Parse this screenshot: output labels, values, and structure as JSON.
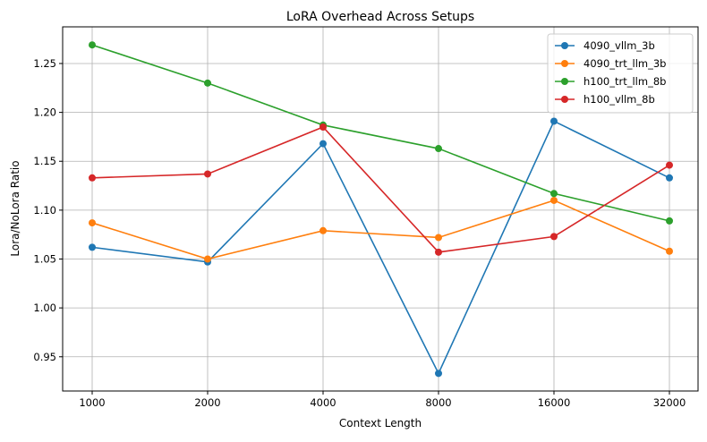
{
  "chart_data": {
    "type": "line",
    "title": "LoRA Overhead Across Setups",
    "xlabel": "Context Length",
    "ylabel": "Lora/NoLora Ratio",
    "categories": [
      "1000",
      "2000",
      "4000",
      "8000",
      "16000",
      "32000"
    ],
    "ylim": [
      0.915,
      1.2875
    ],
    "yticks": [
      0.95,
      1.0,
      1.05,
      1.1,
      1.15,
      1.2,
      1.25
    ],
    "ytick_labels": [
      "0.95",
      "1.00",
      "1.05",
      "1.10",
      "1.15",
      "1.20",
      "1.25"
    ],
    "grid": true,
    "legend_position": "top-right",
    "series": [
      {
        "name": "4090_vllm_3b",
        "color": "#1f77b4",
        "values": [
          1.062,
          1.047,
          1.168,
          0.933,
          1.191,
          1.133
        ]
      },
      {
        "name": "4090_trt_llm_3b",
        "color": "#ff7f0e",
        "values": [
          1.087,
          1.05,
          1.079,
          1.072,
          1.11,
          1.058
        ]
      },
      {
        "name": "h100_trt_llm_8b",
        "color": "#2ca02c",
        "values": [
          1.269,
          1.23,
          1.187,
          1.163,
          1.117,
          1.089
        ]
      },
      {
        "name": "h100_vllm_8b",
        "color": "#d62728",
        "values": [
          1.133,
          1.137,
          1.185,
          1.057,
          1.073,
          1.146
        ]
      }
    ]
  }
}
